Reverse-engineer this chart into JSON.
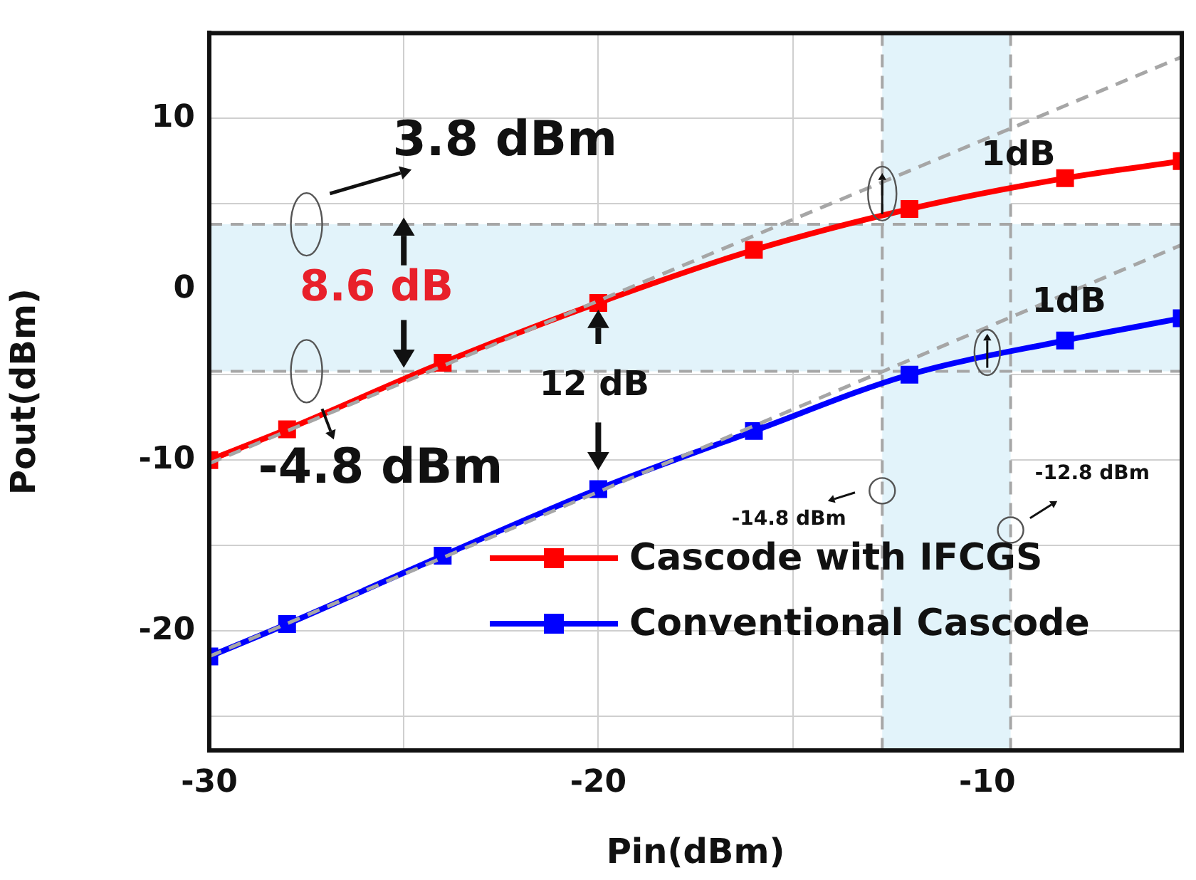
{
  "chart_data": {
    "type": "line",
    "xlabel": "Pin(dBm)",
    "ylabel": "Pout(dBm)",
    "xlim": [
      -30,
      -5
    ],
    "ylim": [
      -27,
      15
    ],
    "xticks": [
      -30,
      {
        "value": -25,
        "label": null
      },
      -20,
      {
        "value": -15,
        "label": null
      },
      -10
    ],
    "yticks": [
      {
        "value": -25,
        "label": null
      },
      -20,
      {
        "value": -15,
        "label": null
      },
      -10,
      {
        "value": -5,
        "label": null
      },
      0,
      {
        "value": 5,
        "label": null
      },
      10
    ],
    "grid": true,
    "legend": "bottom right",
    "marker": "square",
    "line_style": "solid",
    "series": [
      {
        "name": "Cascode with IFCGS",
        "color": "#ff0000",
        "x": [
          -30,
          -28,
          -24,
          -20,
          -16,
          -12,
          -8,
          -5
        ],
        "values": [
          -10.0,
          -8.2,
          -4.3,
          -0.8,
          2.3,
          4.7,
          6.5,
          7.5
        ]
      },
      {
        "name": "Conventional Cascode",
        "color": "#0000ff",
        "x": [
          -30,
          -28,
          -24,
          -20,
          -16,
          -12,
          -8,
          -5
        ],
        "values": [
          -21.5,
          -19.6,
          -15.6,
          -11.7,
          -8.3,
          -5.0,
          -3.0,
          -1.7
        ]
      },
      {
        "type": "line",
        "color": "#a6a6a6",
        "line_style": "dashed",
        "marker": "none",
        "x": [
          -30,
          -5
        ],
        "values": [
          -10.2,
          13.6
        ]
      },
      {
        "type": "line",
        "color": "#a6a6a6",
        "line_style": "dashed",
        "marker": "none",
        "x": [
          -30,
          -5
        ],
        "values": [
          -21.5,
          2.6
        ]
      }
    ],
    "ref_lines": [
      {
        "axis": "y",
        "value": 3.8,
        "color": "#a6a6a6",
        "line_style": "dashed"
      },
      {
        "axis": "y",
        "value": -4.8,
        "color": "#a6a6a6",
        "line_style": "dashed"
      },
      {
        "axis": "x",
        "value": -12.7,
        "color": "#a6a6a6",
        "line_style": "dashed"
      },
      {
        "axis": "x",
        "value": -9.4,
        "color": "#a6a6a6",
        "line_style": "dashed"
      }
    ],
    "bands": [
      {
        "axis": "y",
        "from": -4.8,
        "to": 3.8,
        "color": "#e2f3fa"
      },
      {
        "axis": "x",
        "from": -12.7,
        "to": -9.4,
        "color": "#e2f3fa"
      }
    ],
    "annotations": [
      "3.8 dBm",
      "-4.8 dBm",
      "8.6 dB",
      "12 dB",
      "1dB",
      "1dB",
      "-14.8 dBm",
      "-12.8 dBm"
    ]
  }
}
